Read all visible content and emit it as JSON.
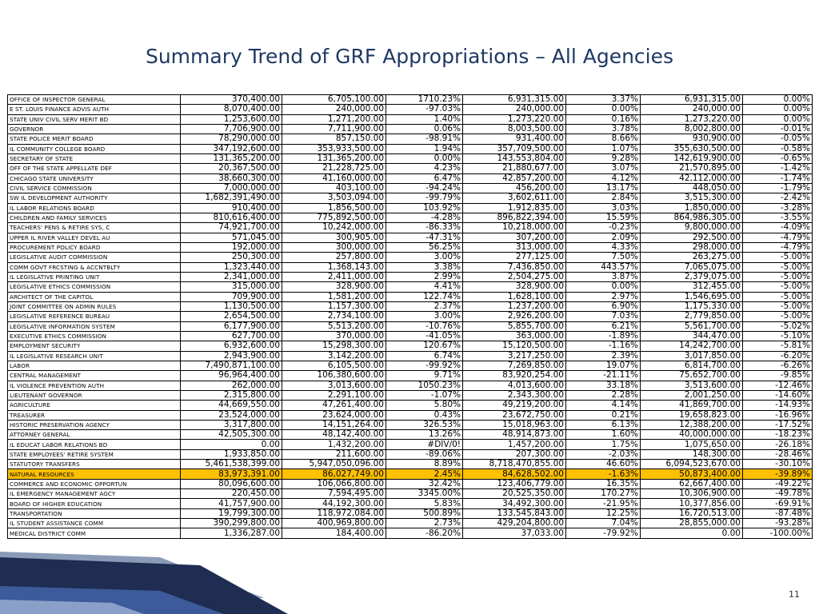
{
  "title": "Summary Trend of GRF Appropriations – All Agencies",
  "page_number": "11",
  "highlight_color": "#ffc000",
  "rows": [
    [
      "OFFICE OF INSPECTOR GENERAL",
      "370,400.00",
      "6,705,100.00",
      "1710.23%",
      "6,931,315.00",
      "3.37%",
      "6,931,315.00",
      "0.00%"
    ],
    [
      "E ST. LOUIS FINANCE ADVIS AUTH",
      "8,070,400.00",
      "240,000.00",
      "-97.03%",
      "240,000.00",
      "0.00%",
      "240,000.00",
      "0.00%"
    ],
    [
      "STATE UNIV CIVIL SERV MERIT BD",
      "1,253,600.00",
      "1,271,200.00",
      "1.40%",
      "1,273,220.00",
      "0.16%",
      "1,273,220.00",
      "0.00%"
    ],
    [
      "GOVERNOR",
      "7,706,900.00",
      "7,711,900.00",
      "0.06%",
      "8,003,500.00",
      "3.78%",
      "8,002,800.00",
      "-0.01%"
    ],
    [
      "STATE POLICE MERIT BOARD",
      "78,290,000.00",
      "857,150.00",
      "-98.91%",
      "931,400.00",
      "8.66%",
      "930,900.00",
      "-0.05%"
    ],
    [
      "IL COMMUNITY COLLEGE BOARD",
      "347,192,600.00",
      "353,933,500.00",
      "1.94%",
      "357,709,500.00",
      "1.07%",
      "355,630,500.00",
      "-0.58%"
    ],
    [
      "SECRETARY OF STATE",
      "131,365,200.00",
      "131,365,200.00",
      "0.00%",
      "143,553,804.00",
      "9.28%",
      "142,619,900.00",
      "-0.65%"
    ],
    [
      "OFF OF THE STATE APPELLATE DEF",
      "20,367,500.00",
      "21,228,725.00",
      "4.23%",
      "21,880,677.00",
      "3.07%",
      "21,570,895.00",
      "-1.42%"
    ],
    [
      "CHICAGO STATE UNIVERSITY",
      "38,660,300.00",
      "41,160,000.00",
      "6.47%",
      "42,857,200.00",
      "4.12%",
      "42,112,000.00",
      "-1.74%"
    ],
    [
      "CIVIL SERVICE COMMISSION",
      "7,000,000.00",
      "403,100.00",
      "-94.24%",
      "456,200.00",
      "13.17%",
      "448,050.00",
      "-1.79%"
    ],
    [
      "SW IL DEVELOPMENT AUTHORITY",
      "1,682,391,490.00",
      "3,503,094.00",
      "-99.79%",
      "3,602,611.00",
      "2.84%",
      "3,515,300.00",
      "-2.42%"
    ],
    [
      "IL LABOR RELATIONS BOARD",
      "910,400.00",
      "1,856,500.00",
      "103.92%",
      "1,912,835.00",
      "3.03%",
      "1,850,000.00",
      "-3.28%"
    ],
    [
      "CHILDREN AND FAMILY SERVICES",
      "810,616,400.00",
      "775,892,500.00",
      "-4.28%",
      "896,822,394.00",
      "15.59%",
      "864,986,305.00",
      "-3.55%"
    ],
    [
      "TEACHERS' PENS & RETIRE SYS, C",
      "74,921,700.00",
      "10,242,000.00",
      "-86.33%",
      "10,218,000.00",
      "-0.23%",
      "9,800,000.00",
      "-4.09%"
    ],
    [
      "UPPER IL RIVER VALLEY DEVEL AU",
      "571,045.00",
      "300,905.00",
      "-47.31%",
      "307,200.00",
      "2.09%",
      "292,500.00",
      "-4.79%"
    ],
    [
      "PROCUREMENT POLICY BOARD",
      "192,000.00",
      "300,000.00",
      "56.25%",
      "313,000.00",
      "4.33%",
      "298,000.00",
      "-4.79%"
    ],
    [
      "LEGISLATIVE AUDIT COMMISSION",
      "250,300.00",
      "257,800.00",
      "3.00%",
      "277,125.00",
      "7.50%",
      "263,275.00",
      "-5.00%"
    ],
    [
      "COMM GOVT FRCSTING & ACCNTBLTY",
      "1,323,440.00",
      "1,368,143.00",
      "3.38%",
      "7,436,850.00",
      "443.57%",
      "7,065,075.00",
      "-5.00%"
    ],
    [
      "IL LEGISLATIVE PRINTING UNIT",
      "2,341,000.00",
      "2,411,000.00",
      "2.99%",
      "2,504,275.00",
      "3.87%",
      "2,379,075.00",
      "-5.00%"
    ],
    [
      "LEGISLATIVE ETHICS COMMISSION",
      "315,000.00",
      "328,900.00",
      "4.41%",
      "328,900.00",
      "0.00%",
      "312,455.00",
      "-5.00%"
    ],
    [
      "ARCHITECT OF THE CAPITOL",
      "709,900.00",
      "1,581,200.00",
      "122.74%",
      "1,628,100.00",
      "2.97%",
      "1,546,695.00",
      "-5.00%"
    ],
    [
      "JOINT COMMITTEE ON ADMIN RULES",
      "1,130,500.00",
      "1,157,300.00",
      "2.37%",
      "1,237,200.00",
      "6.90%",
      "1,175,330.00",
      "-5.00%"
    ],
    [
      "LEGISLATIVE REFERENCE BUREAU",
      "2,654,500.00",
      "2,734,100.00",
      "3.00%",
      "2,926,200.00",
      "7.03%",
      "2,779,850.00",
      "-5.00%"
    ],
    [
      "LEGISLATIVE INFORMATION SYSTEM",
      "6,177,900.00",
      "5,513,200.00",
      "-10.76%",
      "5,855,700.00",
      "6.21%",
      "5,561,700.00",
      "-5.02%"
    ],
    [
      "EXECUTIVE ETHICS COMMISSION",
      "627,700.00",
      "370,000.00",
      "-41.05%",
      "363,000.00",
      "-1.89%",
      "344,470.00",
      "-5.10%"
    ],
    [
      "EMPLOYMENT SECURITY",
      "6,932,600.00",
      "15,298,300.00",
      "120.67%",
      "15,120,500.00",
      "-1.16%",
      "14,242,700.00",
      "-5.81%"
    ],
    [
      "IL LEGISLATIVE RESEARCH UNIT",
      "2,943,900.00",
      "3,142,200.00",
      "6.74%",
      "3,217,250.00",
      "2.39%",
      "3,017,850.00",
      "-6.20%"
    ],
    [
      "LABOR",
      "7,490,871,100.00",
      "6,105,500.00",
      "-99.92%",
      "7,269,850.00",
      "19.07%",
      "6,814,700.00",
      "-6.26%"
    ],
    [
      "CENTRAL MANAGEMENT",
      "96,964,400.00",
      "106,380,600.00",
      "9.71%",
      "83,920,254.00",
      "-21.11%",
      "75,652,700.00",
      "-9.85%"
    ],
    [
      "IL VIOLENCE PREVENTION AUTH",
      "262,000.00",
      "3,013,600.00",
      "1050.23%",
      "4,013,600.00",
      "33.18%",
      "3,513,600.00",
      "-12.46%"
    ],
    [
      "LIEUTENANT GOVERNOR",
      "2,315,800.00",
      "2,291,100.00",
      "-1.07%",
      "2,343,300.00",
      "2.28%",
      "2,001,250.00",
      "-14.60%"
    ],
    [
      "AGRICULTURE",
      "44,669,550.00",
      "47,261,400.00",
      "5.80%",
      "49,219,200.00",
      "4.14%",
      "41,869,700.00",
      "-14.93%"
    ],
    [
      "TREASURER",
      "23,524,000.00",
      "23,624,000.00",
      "0.43%",
      "23,672,750.00",
      "0.21%",
      "19,658,823.00",
      "-16.96%"
    ],
    [
      "HISTORIC PRESERVATION AGENCY",
      "3,317,800.00",
      "14,151,264.00",
      "326.53%",
      "15,018,963.00",
      "6.13%",
      "12,388,200.00",
      "-17.52%"
    ],
    [
      "ATTORNEY GENERAL",
      "42,505,300.00",
      "48,142,400.00",
      "13.26%",
      "48,914,873.00",
      "1.60%",
      "40,000,000.00",
      "-18.23%"
    ],
    [
      "IL EDUCAT LABOR RELATIONS BD",
      "0.00",
      "1,432,200.00",
      "#DIV/0!",
      "1,457,200.00",
      "1.75%",
      "1,075,650.00",
      "-26.18%"
    ],
    [
      "STATE EMPLOYEES' RETIRE SYSTEM",
      "1,933,850.00",
      "211,600.00",
      "-89.06%",
      "207,300.00",
      "-2.03%",
      "148,300.00",
      "-28.46%"
    ],
    [
      "STATUTORY TRANSFERS",
      "5,461,538,399.00",
      "5,947,050,096.00",
      "8.89%",
      "8,718,470,855.00",
      "46.60%",
      "6,094,523,670.00",
      "-30.10%"
    ],
    [
      "NATURAL RESOURCES",
      "83,973,391.00",
      "86,027,749.00",
      "2.45%",
      "84,628,502.00",
      "-1.63%",
      "50,873,400.00",
      "-39.89%"
    ],
    [
      "COMMERCE AND ECONOMIC OPPORTUN",
      "80,096,600.00",
      "106,066,800.00",
      "32.42%",
      "123,406,779.00",
      "16.35%",
      "62,667,400.00",
      "-49.22%"
    ],
    [
      "IL EMERGENCY MANAGEMENT AGCY",
      "220,450.00",
      "7,594,495.00",
      "3345.00%",
      "20,525,350.00",
      "170.27%",
      "10,306,900.00",
      "-49.78%"
    ],
    [
      "BOARD OF HIGHER EDUCATION",
      "41,757,900.00",
      "44,192,300.00",
      "5.83%",
      "34,492,300.00",
      "-21.95%",
      "10,377,856.00",
      "-69.91%"
    ],
    [
      "TRANSPORTATION",
      "19,799,300.00",
      "118,972,084.00",
      "500.89%",
      "133,545,843.00",
      "12.25%",
      "16,720,513.00",
      "-87.48%"
    ],
    [
      "IL STUDENT ASSISTANCE COMM",
      "390,299,800.00",
      "400,969,800.00",
      "2.73%",
      "429,204,800.00",
      "7.04%",
      "28,855,000.00",
      "-93.28%"
    ],
    [
      "MEDICAL DISTRICT COMM",
      "1,336,287.00",
      "184,400.00",
      "-86.20%",
      "37,033.00",
      "-79.92%",
      "0.00",
      "-100.00%"
    ]
  ],
  "highlighted_rows": [
    "NATURAL RESOURCES"
  ]
}
